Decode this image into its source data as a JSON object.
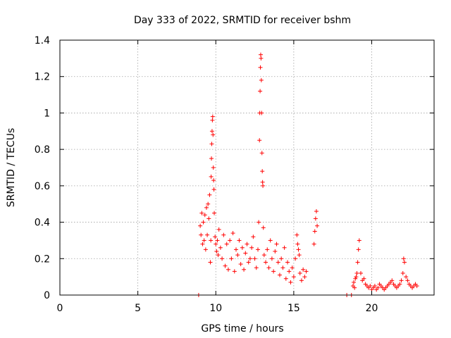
{
  "chart_data": {
    "type": "scatter",
    "title": "Day 333 of 2022, SRMTID for receiver bshm",
    "xlabel": "GPS time / hours",
    "ylabel": "SRMTID / TECUs",
    "xlim": [
      0,
      24
    ],
    "ylim": [
      0,
      1.4
    ],
    "xticks": [
      0,
      5,
      10,
      15,
      20
    ],
    "yticks": [
      0,
      0.2,
      0.4,
      0.6,
      0.8,
      1,
      1.2,
      1.4
    ],
    "xtick_labels": [
      "0",
      "5",
      "10",
      "15",
      "20"
    ],
    "ytick_labels": [
      "0",
      "0.2",
      "0.4",
      "0.6",
      "0.8",
      "1",
      "1.2",
      "1.4"
    ],
    "grid": true,
    "marker": "+",
    "color": "#ff0000",
    "series": [
      {
        "x": [
          8.9,
          9.0,
          9.05,
          9.1,
          9.15,
          9.2,
          9.25,
          9.3,
          9.35,
          9.4,
          9.45,
          9.5,
          9.55,
          9.6,
          9.65,
          9.68,
          9.7,
          9.72,
          9.74,
          9.76,
          9.78,
          9.8,
          9.82,
          9.84,
          9.86,
          9.88,
          9.9,
          9.95,
          10.0,
          10.05,
          10.1,
          10.15,
          10.2,
          10.3,
          10.4,
          10.5,
          10.6,
          10.7,
          10.8,
          10.9,
          11.0,
          11.1,
          11.2,
          11.3,
          11.4,
          11.5,
          11.6,
          11.7,
          11.8,
          11.9,
          12.0,
          12.1,
          12.2,
          12.3,
          12.4,
          12.5,
          12.6,
          12.7,
          12.75,
          12.8,
          12.82,
          12.84,
          12.86,
          12.88,
          12.9,
          12.92,
          12.94,
          12.96,
          12.98,
          13.0,
          13.02,
          13.05,
          13.1,
          13.2,
          13.3,
          13.4,
          13.5,
          13.6,
          13.7,
          13.8,
          13.9,
          14.0,
          14.1,
          14.2,
          14.3,
          14.4,
          14.5,
          14.6,
          14.7,
          14.8,
          14.9,
          15.0,
          15.1,
          15.2,
          15.25,
          15.3,
          15.35,
          15.4,
          15.5,
          15.6,
          15.7,
          15.8,
          16.3,
          16.35,
          16.4,
          16.45,
          16.5,
          18.4,
          18.7,
          18.8,
          18.85,
          18.9,
          18.95,
          19.0,
          19.05,
          19.1,
          19.15,
          19.2,
          19.3,
          19.4,
          19.5,
          19.6,
          19.7,
          19.8,
          19.9,
          20.0,
          20.1,
          20.2,
          20.3,
          20.4,
          20.5,
          20.6,
          20.7,
          20.8,
          20.9,
          21.0,
          21.1,
          21.2,
          21.3,
          21.4,
          21.5,
          21.6,
          21.7,
          21.8,
          21.9,
          22.0,
          22.05,
          22.1,
          22.2,
          22.3,
          22.4,
          22.5,
          22.6,
          22.7,
          22.8,
          22.9
        ],
        "y": [
          0.0,
          0.38,
          0.33,
          0.45,
          0.28,
          0.4,
          0.3,
          0.44,
          0.25,
          0.48,
          0.33,
          0.5,
          0.42,
          0.55,
          0.18,
          0.3,
          0.65,
          0.75,
          0.83,
          0.9,
          0.96,
          0.98,
          0.88,
          0.7,
          0.63,
          0.58,
          0.45,
          0.32,
          0.28,
          0.24,
          0.3,
          0.22,
          0.36,
          0.26,
          0.2,
          0.33,
          0.16,
          0.28,
          0.14,
          0.3,
          0.2,
          0.34,
          0.13,
          0.25,
          0.22,
          0.3,
          0.17,
          0.26,
          0.14,
          0.23,
          0.28,
          0.18,
          0.2,
          0.26,
          0.32,
          0.2,
          0.15,
          0.25,
          0.4,
          0.85,
          1.0,
          1.12,
          1.25,
          1.32,
          1.3,
          1.18,
          1.0,
          0.78,
          0.68,
          0.62,
          0.6,
          0.37,
          0.22,
          0.18,
          0.25,
          0.15,
          0.3,
          0.2,
          0.13,
          0.24,
          0.28,
          0.18,
          0.11,
          0.2,
          0.15,
          0.26,
          0.09,
          0.18,
          0.13,
          0.07,
          0.15,
          0.1,
          0.2,
          0.33,
          0.28,
          0.25,
          0.22,
          0.12,
          0.08,
          0.14,
          0.1,
          0.13,
          0.28,
          0.35,
          0.42,
          0.46,
          0.38,
          0.0,
          0.0,
          0.05,
          0.07,
          0.04,
          0.09,
          0.1,
          0.12,
          0.18,
          0.25,
          0.3,
          0.12,
          0.08,
          0.09,
          0.06,
          0.05,
          0.04,
          0.05,
          0.03,
          0.04,
          0.05,
          0.03,
          0.04,
          0.06,
          0.05,
          0.04,
          0.03,
          0.04,
          0.05,
          0.06,
          0.07,
          0.08,
          0.06,
          0.05,
          0.04,
          0.05,
          0.06,
          0.08,
          0.12,
          0.2,
          0.18,
          0.1,
          0.08,
          0.06,
          0.05,
          0.04,
          0.05,
          0.06,
          0.05
        ]
      }
    ]
  }
}
